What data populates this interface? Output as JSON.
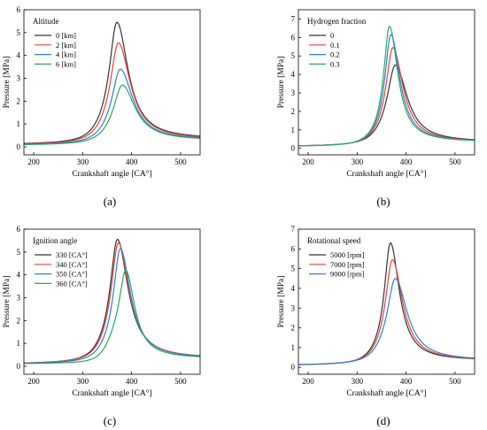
{
  "panels": [
    {
      "panel_label": "(a)"
    },
    {
      "panel_label": "(b)"
    },
    {
      "panel_label": "(c)"
    },
    {
      "panel_label": "(d)"
    }
  ],
  "chart_data": [
    {
      "type": "line",
      "xlabel": "Crankshaft angle [CA°]",
      "ylabel": "Pressure [MPa]",
      "xlim": [
        180,
        540
      ],
      "ylim": [
        -0.35,
        6
      ],
      "xticks": [
        200,
        300,
        400,
        500
      ],
      "yticks": [
        0,
        1,
        2,
        3,
        4,
        5,
        6
      ],
      "legend_title": "Altitude",
      "legend_position": "top-left",
      "series": [
        {
          "name": "0 [km]",
          "color": "#333333",
          "peak_x": 370,
          "peak_y": 5.45,
          "base": 0.1,
          "tail": 0.34,
          "width": 20,
          "sigma": 32,
          "bump": 0.55
        },
        {
          "name": "2 [km]",
          "color": "#e8413b",
          "peak_x": 373,
          "peak_y": 4.55,
          "base": 0.09,
          "tail": 0.32,
          "width": 21,
          "sigma": 32,
          "bump": 0.45
        },
        {
          "name": "4 [km]",
          "color": "#2f7fd0",
          "peak_x": 377,
          "peak_y": 3.4,
          "base": 0.08,
          "tail": 0.3,
          "width": 22,
          "sigma": 32,
          "bump": 0.38
        },
        {
          "name": "6 [km]",
          "color": "#2ca65f",
          "peak_x": 381,
          "peak_y": 2.7,
          "base": 0.07,
          "tail": 0.28,
          "width": 23,
          "sigma": 32,
          "bump": 0.3
        }
      ]
    },
    {
      "type": "line",
      "xlabel": "Crankshaft angle [CA°]",
      "ylabel": "Pressure [MPa]",
      "xlim": [
        180,
        540
      ],
      "ylim": [
        -0.35,
        7.5
      ],
      "xticks": [
        200,
        300,
        400,
        500
      ],
      "yticks": [
        0,
        1,
        2,
        3,
        4,
        5,
        6,
        7
      ],
      "legend_title": "Hydrogen fraction",
      "legend_position": "top-left",
      "series": [
        {
          "name": "0",
          "color": "#333333",
          "peak_x": 378,
          "peak_y": 4.5,
          "base": 0.1,
          "tail": 0.34,
          "width": 21,
          "sigma": 30,
          "bump": 0.5
        },
        {
          "name": "0.1",
          "color": "#e8413b",
          "peak_x": 373,
          "peak_y": 5.45,
          "base": 0.1,
          "tail": 0.34,
          "width": 18,
          "sigma": 30,
          "bump": 0.5
        },
        {
          "name": "0.2",
          "color": "#2f7fd0",
          "peak_x": 369,
          "peak_y": 6.15,
          "base": 0.1,
          "tail": 0.34,
          "width": 16,
          "sigma": 30,
          "bump": 0.5
        },
        {
          "name": "0.3",
          "color": "#2ca65f",
          "peak_x": 366,
          "peak_y": 6.6,
          "base": 0.1,
          "tail": 0.34,
          "width": 15,
          "sigma": 30,
          "bump": 0.5
        }
      ]
    },
    {
      "type": "line",
      "xlabel": "Crankshaft angle [CA°]",
      "ylabel": "Pressure [MPa]",
      "xlim": [
        180,
        540
      ],
      "ylim": [
        -0.35,
        6
      ],
      "xticks": [
        200,
        300,
        400,
        500
      ],
      "yticks": [
        0,
        1,
        2,
        3,
        4,
        5,
        6
      ],
      "legend_title": "Ignition angle",
      "legend_position": "top-left",
      "series": [
        {
          "name": "330 [CA°]",
          "color": "#333333",
          "peak_x": 371,
          "peak_y": 5.55,
          "base": 0.1,
          "tail": 0.34,
          "width": 19,
          "sigma": 30,
          "bump": 0.55
        },
        {
          "name": "340 [CA°]",
          "color": "#e8413b",
          "peak_x": 373,
          "peak_y": 5.4,
          "base": 0.1,
          "tail": 0.34,
          "width": 19,
          "sigma": 30,
          "bump": 0.55
        },
        {
          "name": "350 [CA°]",
          "color": "#2f7fd0",
          "peak_x": 377,
          "peak_y": 5.15,
          "base": 0.1,
          "tail": 0.34,
          "width": 18,
          "sigma": 30,
          "bump": 0.55
        },
        {
          "name": "360 [CA°]",
          "color": "#2ca65f",
          "peak_x": 388,
          "peak_y": 4.2,
          "base": 0.1,
          "tail": 0.34,
          "width": 16,
          "sigma": 30,
          "bump": 1.4
        }
      ]
    },
    {
      "type": "line",
      "xlabel": "Crankshaft angle [CA°]",
      "ylabel": "Pressure [MPa]",
      "xlim": [
        180,
        540
      ],
      "ylim": [
        -0.35,
        7
      ],
      "xticks": [
        200,
        300,
        400,
        500
      ],
      "yticks": [
        0,
        1,
        2,
        3,
        4,
        5,
        6,
        7
      ],
      "legend_title": "Rotational speed",
      "legend_position": "top-left",
      "series": [
        {
          "name": "5000 [rpm]",
          "color": "#333333",
          "peak_x": 368,
          "peak_y": 6.3,
          "base": 0.1,
          "tail": 0.34,
          "width": 16,
          "sigma": 30,
          "bump": 0.5
        },
        {
          "name": "7000 [rpm]",
          "color": "#e8413b",
          "peak_x": 372,
          "peak_y": 5.45,
          "base": 0.1,
          "tail": 0.34,
          "width": 18,
          "sigma": 30,
          "bump": 0.5
        },
        {
          "name": "9000 [rpm]",
          "color": "#2f7fd0",
          "peak_x": 378,
          "peak_y": 4.5,
          "base": 0.1,
          "tail": 0.34,
          "width": 21,
          "sigma": 30,
          "bump": 0.5
        }
      ]
    }
  ]
}
